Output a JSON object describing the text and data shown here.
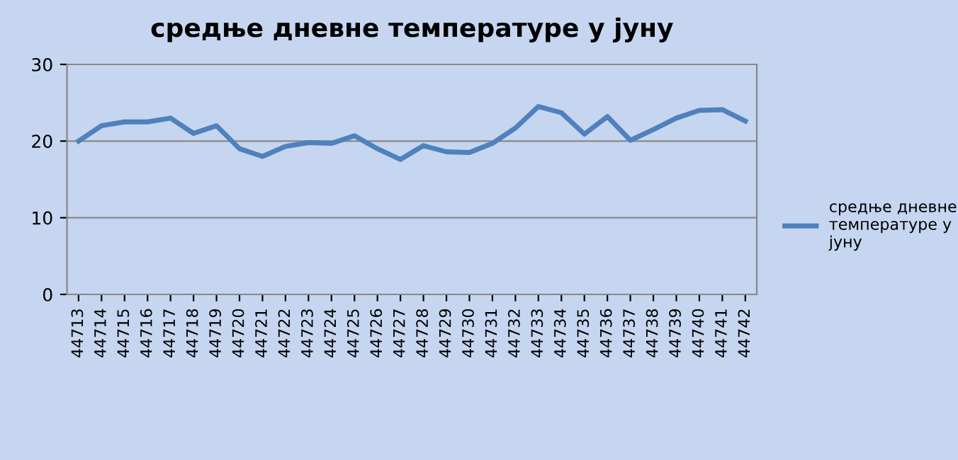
{
  "chart_data": {
    "type": "line",
    "title": "средње дневне температуре у јуну",
    "categories": [
      "44713",
      "44714",
      "44715",
      "44716",
      "44717",
      "44718",
      "44719",
      "44720",
      "44721",
      "44722",
      "44723",
      "44724",
      "44725",
      "44726",
      "44727",
      "44728",
      "44729",
      "44730",
      "44731",
      "44732",
      "44733",
      "44734",
      "44735",
      "44736",
      "44737",
      "44738",
      "44739",
      "44740",
      "44741",
      "44742"
    ],
    "series": [
      {
        "name": "средње дневне температуре у јуну",
        "color": "#4f81bd",
        "values": [
          20,
          22,
          22.5,
          22.5,
          23,
          21,
          22,
          19,
          18,
          19.3,
          19.8,
          19.7,
          20.7,
          19,
          17.6,
          19.4,
          18.6,
          18.5,
          19.7,
          21.7,
          24.5,
          23.7,
          20.9,
          23.2,
          20.1,
          21.5,
          23,
          24,
          24.1,
          22.6
        ]
      }
    ],
    "ylim": [
      0,
      30
    ],
    "yticks": [
      0,
      10,
      20,
      30
    ],
    "grid": "y",
    "legend": "right",
    "marker": "none",
    "line_style": "solid"
  }
}
